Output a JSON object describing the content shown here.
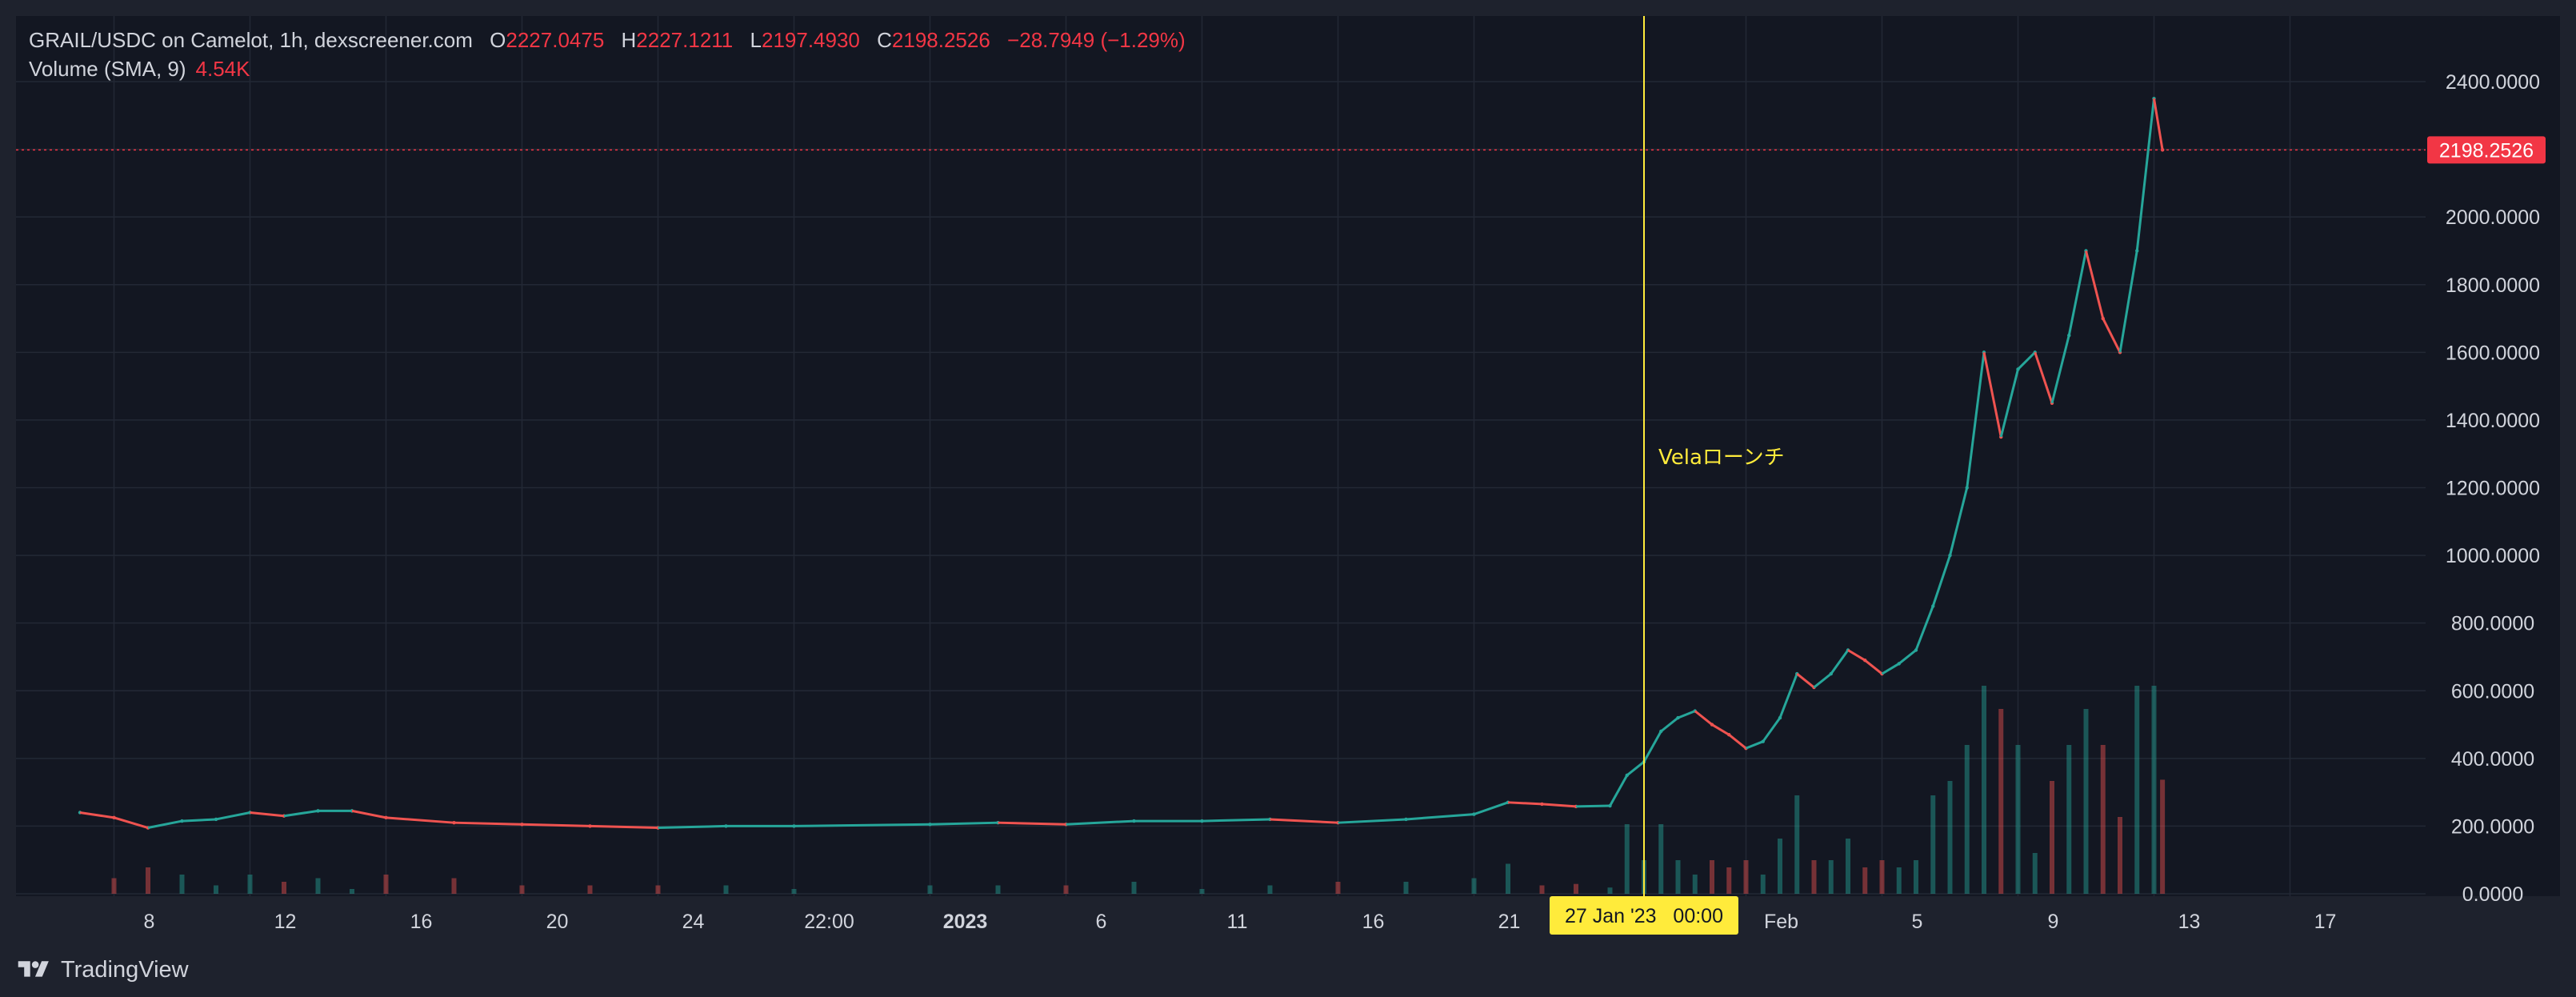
{
  "legend": {
    "symbol": "GRAIL/USDC on Camelot, 1h, dexscreener.com",
    "open_key": "O",
    "open": "2227.0475",
    "high_key": "H",
    "high": "2227.1211",
    "low_key": "L",
    "low": "2197.4930",
    "close_key": "C",
    "close": "2198.2526",
    "change": "−28.7949 (−1.29%)",
    "volume_label": "Volume (SMA, 9)",
    "volume_value": "4.54K"
  },
  "branding": {
    "name": "TradingView"
  },
  "colors": {
    "background": "#131722",
    "frame": "#1e222d",
    "grid": "#232835",
    "text": "#d1d4dc",
    "up": "#26a69a",
    "down": "#ef5350",
    "marker": "#ffeb3b",
    "price_label": "#f23645"
  },
  "chart_data": {
    "type": "candlestick",
    "title": "",
    "xlabel": "",
    "ylabel": "",
    "ylim": [
      0,
      2600
    ],
    "y_ticks": [
      "2400.0000",
      "2200.0000",
      "2000.0000",
      "1800.0000",
      "1600.0000",
      "1400.0000",
      "1200.0000",
      "1000.0000",
      "800.0000",
      "600.0000",
      "400.0000",
      "200.0000",
      "0.0000"
    ],
    "y_tick_values": [
      2400,
      2200,
      2000,
      1800,
      1600,
      1400,
      1200,
      1000,
      800,
      600,
      400,
      200,
      0
    ],
    "x_ticks": [
      {
        "label": "8",
        "date": "2022-12-08"
      },
      {
        "label": "12",
        "date": "2022-12-12"
      },
      {
        "label": "16",
        "date": "2022-12-16"
      },
      {
        "label": "20",
        "date": "2022-12-20"
      },
      {
        "label": "24",
        "date": "2022-12-24"
      },
      {
        "label": "22:00",
        "date": "2022-12-28"
      },
      {
        "label": "2023",
        "date": "2023-01-01",
        "bold": true
      },
      {
        "label": "6",
        "date": "2023-01-05"
      },
      {
        "label": "11",
        "date": "2023-01-09"
      },
      {
        "label": "16",
        "date": "2023-01-13"
      },
      {
        "label": "21",
        "date": "2023-01-17"
      },
      {
        "label": "Feb",
        "date": "2023-01-25"
      },
      {
        "label": "5",
        "date": "2023-01-29"
      },
      {
        "label": "9",
        "date": "2023-02-02"
      },
      {
        "label": "13",
        "date": "2023-02-06"
      },
      {
        "label": "17",
        "date": "2023-02-10"
      }
    ],
    "series": [
      {
        "name": "GRAIL/USDC",
        "points": [
          {
            "date": "2022-12-07",
            "close": 240
          },
          {
            "date": "2022-12-08",
            "close": 225
          },
          {
            "date": "2022-12-09",
            "close": 195
          },
          {
            "date": "2022-12-10",
            "close": 215
          },
          {
            "date": "2022-12-11",
            "close": 220
          },
          {
            "date": "2022-12-12",
            "close": 240
          },
          {
            "date": "2022-12-13",
            "close": 230
          },
          {
            "date": "2022-12-14",
            "close": 245
          },
          {
            "date": "2022-12-15",
            "close": 245
          },
          {
            "date": "2022-12-16",
            "close": 225
          },
          {
            "date": "2022-12-18",
            "close": 210
          },
          {
            "date": "2022-12-20",
            "close": 205
          },
          {
            "date": "2022-12-22",
            "close": 200
          },
          {
            "date": "2022-12-24",
            "close": 195
          },
          {
            "date": "2022-12-26",
            "close": 200
          },
          {
            "date": "2022-12-28",
            "close": 200
          },
          {
            "date": "2023-01-01",
            "close": 205
          },
          {
            "date": "2023-01-03",
            "close": 210
          },
          {
            "date": "2023-01-05",
            "close": 205
          },
          {
            "date": "2023-01-07",
            "close": 215
          },
          {
            "date": "2023-01-09",
            "close": 215
          },
          {
            "date": "2023-01-11",
            "close": 220
          },
          {
            "date": "2023-01-13",
            "close": 210
          },
          {
            "date": "2023-01-15",
            "close": 220
          },
          {
            "date": "2023-01-17",
            "close": 235
          },
          {
            "date": "2023-01-18",
            "close": 270
          },
          {
            "date": "2023-01-19",
            "close": 265
          },
          {
            "date": "2023-01-20",
            "close": 258
          },
          {
            "date": "2023-01-21",
            "close": 260
          },
          {
            "date": "2023-01-21T12:00",
            "close": 350
          },
          {
            "date": "2023-01-22",
            "close": 390
          },
          {
            "date": "2023-01-22T12:00",
            "close": 480
          },
          {
            "date": "2023-01-23",
            "close": 520
          },
          {
            "date": "2023-01-23T12:00",
            "close": 540
          },
          {
            "date": "2023-01-24",
            "close": 500
          },
          {
            "date": "2023-01-24T12:00",
            "close": 470
          },
          {
            "date": "2023-01-25",
            "close": 430
          },
          {
            "date": "2023-01-25T12:00",
            "close": 450
          },
          {
            "date": "2023-01-26",
            "close": 520
          },
          {
            "date": "2023-01-26T12:00",
            "close": 650
          },
          {
            "date": "2023-01-27",
            "close": 610
          },
          {
            "date": "2023-01-27T12:00",
            "close": 650
          },
          {
            "date": "2023-01-28",
            "close": 720
          },
          {
            "date": "2023-01-28T12:00",
            "close": 690
          },
          {
            "date": "2023-01-29",
            "close": 650
          },
          {
            "date": "2023-01-29T12:00",
            "close": 680
          },
          {
            "date": "2023-01-30",
            "close": 720
          },
          {
            "date": "2023-01-30T12:00",
            "close": 850
          },
          {
            "date": "2023-01-31",
            "close": 1000
          },
          {
            "date": "2023-01-31T12:00",
            "close": 1200
          },
          {
            "date": "2023-02-01",
            "close": 1600
          },
          {
            "date": "2023-02-01T12:00",
            "close": 1350
          },
          {
            "date": "2023-02-02",
            "close": 1550
          },
          {
            "date": "2023-02-02T12:00",
            "close": 1600
          },
          {
            "date": "2023-02-03",
            "close": 1450
          },
          {
            "date": "2023-02-03T12:00",
            "close": 1650
          },
          {
            "date": "2023-02-04",
            "close": 1900
          },
          {
            "date": "2023-02-04T12:00",
            "close": 1700
          },
          {
            "date": "2023-02-05",
            "close": 1600
          },
          {
            "date": "2023-02-05T12:00",
            "close": 1900
          },
          {
            "date": "2023-02-06",
            "close": 2350
          },
          {
            "date": "2023-02-06T06:00",
            "close": 2198.2526
          }
        ]
      }
    ],
    "volume": {
      "name": "Volume (SMA, 9)",
      "note_max_hint": 650
    },
    "current_price": {
      "value": 2198.2526,
      "label": "2198.2526"
    },
    "event_marker": {
      "date": "2023-01-22",
      "label": "Velaローンチ",
      "axis_label": "27 Jan '23   00:00"
    }
  }
}
